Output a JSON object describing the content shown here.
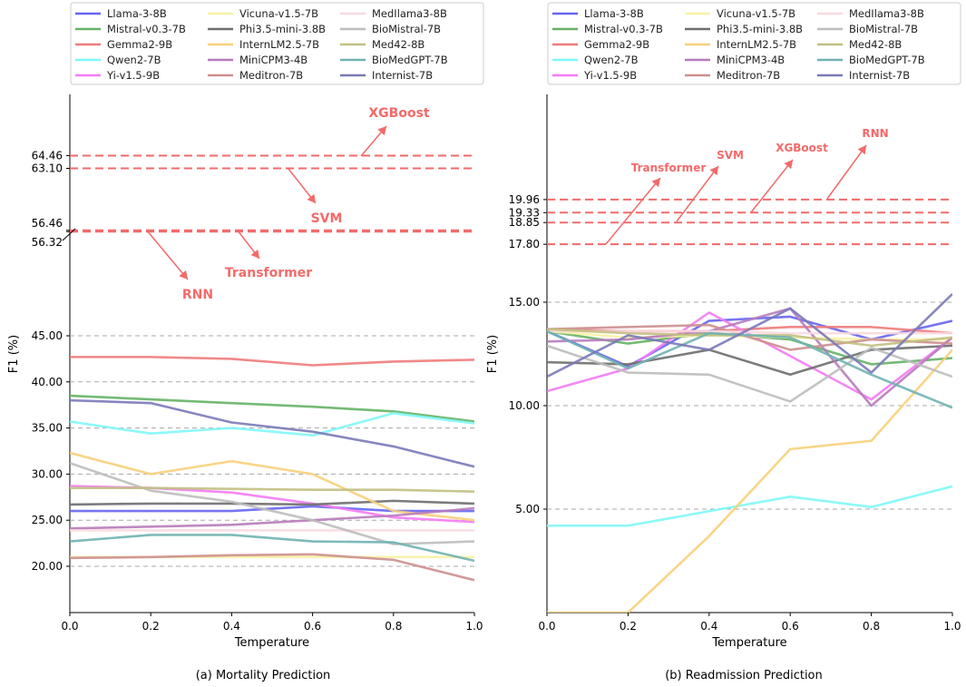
{
  "series_styles": [
    {
      "name": "Llama-3-8B",
      "color": "#6666ee"
    },
    {
      "name": "Mistral-v0.3-7B",
      "color": "#66b266"
    },
    {
      "name": "Gemma2-9B",
      "color": "#f07b7b"
    },
    {
      "name": "Qwen2-7B",
      "color": "#7ff7f7"
    },
    {
      "name": "Yi-v1.5-9B",
      "color": "#f47bf4"
    },
    {
      "name": "Vicuna-v1.5-7B",
      "color": "#f7f2a3"
    },
    {
      "name": "Phi3.5-mini-3.8B",
      "color": "#6e6e6e"
    },
    {
      "name": "InternLM2.5-7B",
      "color": "#f8d07a"
    },
    {
      "name": "MiniCPM3-4B",
      "color": "#b77bbb"
    },
    {
      "name": "Meditron-7B",
      "color": "#cd8f8f"
    },
    {
      "name": "MedIlama3-8B",
      "color": "#f8d9df"
    },
    {
      "name": "BioMistral-7B",
      "color": "#bdbdbd"
    },
    {
      "name": "Med42-8B",
      "color": "#c2c081"
    },
    {
      "name": "BioMedGPT-7B",
      "color": "#70b3b3"
    },
    {
      "name": "Internist-7B",
      "color": "#7a7ab8"
    }
  ],
  "chart_data": [
    {
      "type": "line",
      "caption": "(a) Mortality Prediction",
      "xlabel": "Temperature",
      "ylabel": "F1 (%)",
      "x": [
        0.0,
        0.2,
        0.4,
        0.6,
        0.8,
        1.0
      ],
      "xticks": [
        "0.0",
        "0.2",
        "0.4",
        "0.6",
        "0.8",
        "1.0"
      ],
      "yticks": [
        "20.00",
        "25.00",
        "30.00",
        "35.00",
        "40.00",
        "45.00"
      ],
      "ylim": [
        15,
        75
      ],
      "axis_break": {
        "from": 45.5,
        "to": 56.3
      },
      "baselines": [
        {
          "label": "XGBoost",
          "value": 64.46,
          "tick": "64.46"
        },
        {
          "label": "SVM",
          "value": 63.1,
          "tick": "63.10"
        },
        {
          "label": "Transformer",
          "value": 56.46,
          "tick": "56.46"
        },
        {
          "label": "RNN",
          "value": 56.32,
          "tick": "56.32"
        }
      ],
      "series": [
        {
          "name": "Llama-3-8B",
          "values": [
            26.0,
            26.0,
            26.0,
            26.5,
            26.0,
            26.0
          ]
        },
        {
          "name": "Mistral-v0.3-7B",
          "values": [
            38.5,
            38.1,
            37.7,
            37.3,
            36.8,
            35.7
          ]
        },
        {
          "name": "Gemma2-9B",
          "values": [
            42.7,
            42.7,
            42.5,
            41.8,
            42.2,
            42.4
          ]
        },
        {
          "name": "Qwen2-7B",
          "values": [
            35.7,
            34.4,
            35.0,
            34.2,
            36.6,
            35.5
          ]
        },
        {
          "name": "Yi-v1.5-9B",
          "values": [
            28.7,
            28.5,
            28.0,
            26.8,
            25.3,
            24.8
          ]
        },
        {
          "name": "Vicuna-v1.5-7B",
          "values": [
            21.0,
            21.0,
            21.0,
            21.0,
            21.0,
            21.0
          ]
        },
        {
          "name": "Phi3.5-mini-3.8B",
          "values": [
            26.7,
            26.8,
            26.8,
            26.7,
            27.1,
            26.8
          ]
        },
        {
          "name": "InternLM2.5-7B",
          "values": [
            32.3,
            30.0,
            31.4,
            30.0,
            26.0,
            25.0
          ]
        },
        {
          "name": "MiniCPM3-4B",
          "values": [
            24.1,
            24.3,
            24.5,
            25.0,
            25.5,
            26.3
          ]
        },
        {
          "name": "Meditron-7B",
          "values": [
            20.9,
            21.0,
            21.2,
            21.3,
            20.7,
            18.5
          ]
        },
        {
          "name": "MedIlama3-8B",
          "values": [
            23.9,
            23.9,
            23.9,
            23.9,
            23.9,
            23.9
          ]
        },
        {
          "name": "BioMistral-7B",
          "values": [
            31.2,
            28.2,
            27.0,
            25.0,
            22.4,
            22.7
          ]
        },
        {
          "name": "Med42-8B",
          "values": [
            28.5,
            28.5,
            28.4,
            28.3,
            28.3,
            28.1
          ]
        },
        {
          "name": "BioMedGPT-7B",
          "values": [
            22.7,
            23.4,
            23.4,
            22.7,
            22.6,
            20.6
          ]
        },
        {
          "name": "Internist-7B",
          "values": [
            38.0,
            37.7,
            35.6,
            34.6,
            33.0,
            30.8
          ]
        }
      ]
    },
    {
      "type": "line",
      "caption": "(b) Readmission Prediction",
      "xlabel": "Temperature",
      "ylabel": "F1 (%)",
      "x": [
        0.0,
        0.2,
        0.4,
        0.6,
        0.8,
        1.0
      ],
      "xticks": [
        "0.0",
        "0.2",
        "0.4",
        "0.6",
        "0.8",
        "1.0"
      ],
      "yticks": [
        "5.00",
        "10.00",
        "15.00"
      ],
      "ylim": [
        0,
        25
      ],
      "baselines": [
        {
          "label": "RNN",
          "value": 19.96,
          "tick": "19.96"
        },
        {
          "label": "XGBoost",
          "value": 19.33,
          "tick": "19.33"
        },
        {
          "label": "SVM",
          "value": 18.85,
          "tick": "18.85"
        },
        {
          "label": "Transformer",
          "value": 17.8,
          "tick": "17.80"
        }
      ],
      "series": [
        {
          "name": "Llama-3-8B",
          "values": [
            13.6,
            11.9,
            14.1,
            14.3,
            13.2,
            14.1
          ]
        },
        {
          "name": "Mistral-v0.3-7B",
          "values": [
            13.6,
            13.0,
            13.5,
            13.2,
            12.0,
            12.3
          ]
        },
        {
          "name": "Gemma2-9B",
          "values": [
            13.7,
            13.6,
            13.6,
            13.8,
            13.8,
            13.5
          ]
        },
        {
          "name": "Qwen2-7B",
          "values": [
            4.2,
            4.2,
            4.9,
            5.6,
            5.1,
            6.1
          ]
        },
        {
          "name": "Yi-v1.5-9B",
          "values": [
            10.7,
            11.8,
            14.5,
            12.4,
            10.3,
            13.3
          ]
        },
        {
          "name": "Vicuna-v1.5-7B",
          "values": [
            13.6,
            13.3,
            13.4,
            13.3,
            13.2,
            13.2
          ]
        },
        {
          "name": "Phi3.5-mini-3.8B",
          "values": [
            12.1,
            12.0,
            12.7,
            11.5,
            12.7,
            12.9
          ]
        },
        {
          "name": "InternLM2.5-7B",
          "values": [
            0,
            0,
            3.7,
            7.9,
            8.3,
            12.7
          ]
        },
        {
          "name": "MiniCPM3-4B",
          "values": [
            13.1,
            13.2,
            13.6,
            14.7,
            10.0,
            13.3
          ]
        },
        {
          "name": "Meditron-7B",
          "values": [
            13.7,
            13.8,
            13.9,
            12.7,
            13.2,
            13.0
          ]
        },
        {
          "name": "MedIlama3-8B",
          "values": [
            13.6,
            13.6,
            13.6,
            13.5,
            13.5,
            13.5
          ]
        },
        {
          "name": "BioMistral-7B",
          "values": [
            12.9,
            11.6,
            11.5,
            10.2,
            12.8,
            11.4
          ]
        },
        {
          "name": "Med42-8B",
          "values": [
            13.7,
            13.5,
            13.4,
            13.4,
            12.9,
            13.3
          ]
        },
        {
          "name": "BioMedGPT-7B",
          "values": [
            13.6,
            11.8,
            13.5,
            13.3,
            11.5,
            9.9
          ]
        },
        {
          "name": "Internist-7B",
          "values": [
            11.4,
            13.4,
            12.7,
            14.7,
            11.6,
            15.4
          ]
        }
      ]
    }
  ]
}
